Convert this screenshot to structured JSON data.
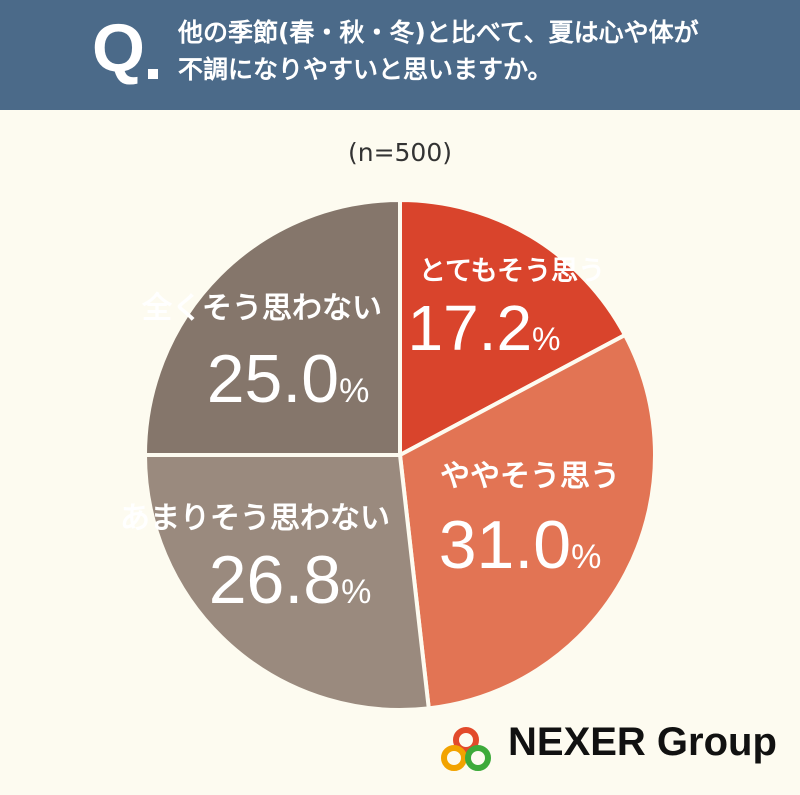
{
  "header": {
    "q_mark": "Q",
    "question_line1": "他の季節(春・秋・冬)と比べて、夏は心や体が",
    "question_line2": "不調になりやすいと思いますか。",
    "bg_color": "#4b6a89"
  },
  "sample_size": "(n=500)",
  "chart_data": {
    "type": "pie",
    "title": "",
    "slices": [
      {
        "label": "とてもそう思う",
        "value": 17.2,
        "display": "17.2",
        "color": "#d9442c"
      },
      {
        "label": "ややそう思う",
        "value": 31.0,
        "display": "31.0",
        "color": "#e27454"
      },
      {
        "label": "あまりそう思わない",
        "value": 26.8,
        "display": "26.8",
        "color": "#9a8a7e"
      },
      {
        "label": "全くそう思わない",
        "value": 25.0,
        "display": "25.0",
        "color": "#85766b"
      }
    ],
    "unit": "%",
    "start_angle": "12 o'clock",
    "direction": "clockwise"
  },
  "logo": {
    "text": "NEXER Group",
    "icon": "three-rings-logo-icon",
    "ring_colors": [
      "#e24a2b",
      "#f2a300",
      "#3daa3a"
    ]
  }
}
